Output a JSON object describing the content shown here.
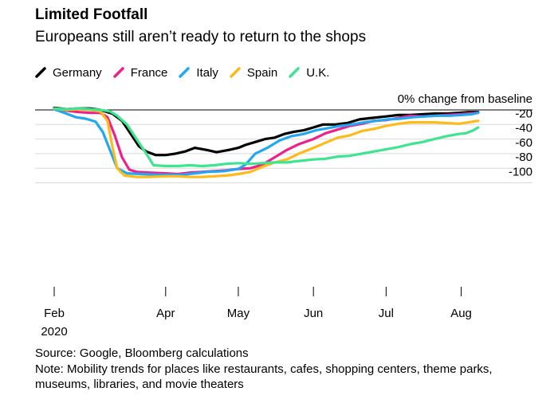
{
  "header": {
    "title": "Limited Footfall",
    "subtitle": "Europeans still aren’t ready to return to the shops"
  },
  "legend": [
    {
      "label": "Germany",
      "color": "#000000"
    },
    {
      "label": "France",
      "color": "#ef1f8c"
    },
    {
      "label": "Italy",
      "color": "#22a8f0"
    },
    {
      "label": "Spain",
      "color": "#fcbb1a"
    },
    {
      "label": "U.K.",
      "color": "#3ee58f"
    }
  ],
  "footer": {
    "source": "Source: Google, Bloomberg calculations",
    "note": "Note: Mobility trends for places like restaurants, cafes, shopping centers, theme parks, museums, libraries, and movie theaters"
  },
  "chart_data": {
    "type": "line",
    "title": "Limited Footfall",
    "subtitle": "Europeans still aren’t ready to return to the shops",
    "ylabel": "% change from baseline",
    "ylim": [
      -100,
      0
    ],
    "y_ticks": [
      {
        "value": 0,
        "label": "0% change from baseline"
      },
      {
        "value": -20,
        "label": "-20"
      },
      {
        "value": -40,
        "label": "-40"
      },
      {
        "value": -60,
        "label": "-60"
      },
      {
        "value": -80,
        "label": "-80"
      },
      {
        "value": -100,
        "label": "-100"
      }
    ],
    "xlim": [
      "2020-02-15",
      "2020-08-12"
    ],
    "x_ticks": [
      {
        "date": "2020-02-15",
        "label": "Feb",
        "sublabel": "2020"
      },
      {
        "date": "2020-04-01",
        "label": "Apr"
      },
      {
        "date": "2020-05-01",
        "label": "May"
      },
      {
        "date": "2020-06-01",
        "label": "Jun"
      },
      {
        "date": "2020-07-01",
        "label": "Jul"
      },
      {
        "date": "2020-08-01",
        "label": "Aug"
      }
    ],
    "legend_position": "top-left",
    "grid": true,
    "series": [
      {
        "name": "Germany",
        "color": "#000000",
        "points": [
          [
            "2020-02-15",
            3
          ],
          [
            "2020-02-20",
            1
          ],
          [
            "2020-02-25",
            2
          ],
          [
            "2020-03-01",
            2
          ],
          [
            "2020-03-05",
            0
          ],
          [
            "2020-03-10",
            -5
          ],
          [
            "2020-03-14",
            -15
          ],
          [
            "2020-03-18",
            -35
          ],
          [
            "2020-03-21",
            -50
          ],
          [
            "2020-03-24",
            -57
          ],
          [
            "2020-03-28",
            -62
          ],
          [
            "2020-04-01",
            -62
          ],
          [
            "2020-04-05",
            -60
          ],
          [
            "2020-04-09",
            -57
          ],
          [
            "2020-04-13",
            -52
          ],
          [
            "2020-04-18",
            -55
          ],
          [
            "2020-04-22",
            -58
          ],
          [
            "2020-04-27",
            -55
          ],
          [
            "2020-05-01",
            -52
          ],
          [
            "2020-05-04",
            -48
          ],
          [
            "2020-05-08",
            -44
          ],
          [
            "2020-05-12",
            -40
          ],
          [
            "2020-05-16",
            -38
          ],
          [
            "2020-05-20",
            -33
          ],
          [
            "2020-05-24",
            -30
          ],
          [
            "2020-05-28",
            -28
          ],
          [
            "2020-06-01",
            -24
          ],
          [
            "2020-06-05",
            -20
          ],
          [
            "2020-06-10",
            -20
          ],
          [
            "2020-06-15",
            -18
          ],
          [
            "2020-06-20",
            -13
          ],
          [
            "2020-06-25",
            -11
          ],
          [
            "2020-07-01",
            -9
          ],
          [
            "2020-07-06",
            -7
          ],
          [
            "2020-07-11",
            -7
          ],
          [
            "2020-07-16",
            -6
          ],
          [
            "2020-07-21",
            -5
          ],
          [
            "2020-07-26",
            -5
          ],
          [
            "2020-07-31",
            -4
          ],
          [
            "2020-08-04",
            -3
          ],
          [
            "2020-08-08",
            -3
          ]
        ]
      },
      {
        "name": "France",
        "color": "#ef1f8c",
        "points": [
          [
            "2020-02-15",
            2
          ],
          [
            "2020-02-20",
            -1
          ],
          [
            "2020-02-25",
            -3
          ],
          [
            "2020-03-01",
            -4
          ],
          [
            "2020-03-05",
            -4
          ],
          [
            "2020-03-08",
            -10
          ],
          [
            "2020-03-11",
            -35
          ],
          [
            "2020-03-14",
            -65
          ],
          [
            "2020-03-17",
            -82
          ],
          [
            "2020-03-20",
            -85
          ],
          [
            "2020-03-25",
            -86
          ],
          [
            "2020-04-01",
            -87
          ],
          [
            "2020-04-06",
            -88
          ],
          [
            "2020-04-11",
            -86
          ],
          [
            "2020-04-16",
            -85
          ],
          [
            "2020-04-21",
            -84
          ],
          [
            "2020-04-26",
            -83
          ],
          [
            "2020-05-01",
            -81
          ],
          [
            "2020-05-06",
            -80
          ],
          [
            "2020-05-11",
            -75
          ],
          [
            "2020-05-16",
            -65
          ],
          [
            "2020-05-21",
            -55
          ],
          [
            "2020-05-26",
            -47
          ],
          [
            "2020-06-01",
            -40
          ],
          [
            "2020-06-06",
            -32
          ],
          [
            "2020-06-11",
            -27
          ],
          [
            "2020-06-16",
            -22
          ],
          [
            "2020-06-21",
            -19
          ],
          [
            "2020-06-26",
            -15
          ],
          [
            "2020-07-01",
            -14
          ],
          [
            "2020-07-06",
            -11
          ],
          [
            "2020-07-11",
            -8
          ],
          [
            "2020-07-16",
            -9
          ],
          [
            "2020-07-21",
            -8
          ],
          [
            "2020-07-26",
            -7
          ],
          [
            "2020-07-31",
            -6
          ],
          [
            "2020-08-04",
            -5
          ],
          [
            "2020-08-08",
            -4
          ]
        ]
      },
      {
        "name": "Italy",
        "color": "#22a8f0",
        "points": [
          [
            "2020-02-15",
            1
          ],
          [
            "2020-02-20",
            -5
          ],
          [
            "2020-02-24",
            -10
          ],
          [
            "2020-02-28",
            -12
          ],
          [
            "2020-03-03",
            -16
          ],
          [
            "2020-03-06",
            -30
          ],
          [
            "2020-03-09",
            -55
          ],
          [
            "2020-03-12",
            -80
          ],
          [
            "2020-03-16",
            -87
          ],
          [
            "2020-03-22",
            -88
          ],
          [
            "2020-03-28",
            -89
          ],
          [
            "2020-04-03",
            -89
          ],
          [
            "2020-04-08",
            -89
          ],
          [
            "2020-04-13",
            -87
          ],
          [
            "2020-04-18",
            -85
          ],
          [
            "2020-04-25",
            -84
          ],
          [
            "2020-05-01",
            -81
          ],
          [
            "2020-05-04",
            -75
          ],
          [
            "2020-05-08",
            -60
          ],
          [
            "2020-05-13",
            -52
          ],
          [
            "2020-05-18",
            -42
          ],
          [
            "2020-05-23",
            -36
          ],
          [
            "2020-05-28",
            -33
          ],
          [
            "2020-06-02",
            -28
          ],
          [
            "2020-06-07",
            -25
          ],
          [
            "2020-06-12",
            -22
          ],
          [
            "2020-06-17",
            -20
          ],
          [
            "2020-06-22",
            -17
          ],
          [
            "2020-06-27",
            -15
          ],
          [
            "2020-07-02",
            -13
          ],
          [
            "2020-07-07",
            -12
          ],
          [
            "2020-07-12",
            -10
          ],
          [
            "2020-07-17",
            -9
          ],
          [
            "2020-07-22",
            -8
          ],
          [
            "2020-07-27",
            -8
          ],
          [
            "2020-08-01",
            -7
          ],
          [
            "2020-08-05",
            -6
          ],
          [
            "2020-08-08",
            -4
          ]
        ]
      },
      {
        "name": "Spain",
        "color": "#fcbb1a",
        "points": [
          [
            "2020-02-15",
            2
          ],
          [
            "2020-02-20",
            0
          ],
          [
            "2020-02-25",
            1
          ],
          [
            "2020-03-01",
            0
          ],
          [
            "2020-03-05",
            -2
          ],
          [
            "2020-03-08",
            -15
          ],
          [
            "2020-03-10",
            -50
          ],
          [
            "2020-03-12",
            -80
          ],
          [
            "2020-03-15",
            -90
          ],
          [
            "2020-03-20",
            -92
          ],
          [
            "2020-03-25",
            -92
          ],
          [
            "2020-04-01",
            -91
          ],
          [
            "2020-04-06",
            -91
          ],
          [
            "2020-04-11",
            -92
          ],
          [
            "2020-04-16",
            -92
          ],
          [
            "2020-04-21",
            -91
          ],
          [
            "2020-04-26",
            -90
          ],
          [
            "2020-05-01",
            -88
          ],
          [
            "2020-05-06",
            -85
          ],
          [
            "2020-05-11",
            -78
          ],
          [
            "2020-05-16",
            -72
          ],
          [
            "2020-05-21",
            -68
          ],
          [
            "2020-05-26",
            -60
          ],
          [
            "2020-06-01",
            -52
          ],
          [
            "2020-06-06",
            -45
          ],
          [
            "2020-06-11",
            -38
          ],
          [
            "2020-06-16",
            -35
          ],
          [
            "2020-06-21",
            -29
          ],
          [
            "2020-06-26",
            -26
          ],
          [
            "2020-07-01",
            -22
          ],
          [
            "2020-07-06",
            -19
          ],
          [
            "2020-07-11",
            -17
          ],
          [
            "2020-07-16",
            -17
          ],
          [
            "2020-07-21",
            -17
          ],
          [
            "2020-07-26",
            -18
          ],
          [
            "2020-07-31",
            -19
          ],
          [
            "2020-08-04",
            -17
          ],
          [
            "2020-08-08",
            -15
          ]
        ]
      },
      {
        "name": "U.K.",
        "color": "#3ee58f",
        "points": [
          [
            "2020-02-15",
            2
          ],
          [
            "2020-02-20",
            1
          ],
          [
            "2020-02-25",
            2
          ],
          [
            "2020-03-01",
            1
          ],
          [
            "2020-03-05",
            0
          ],
          [
            "2020-03-09",
            -2
          ],
          [
            "2020-03-12",
            -8
          ],
          [
            "2020-03-16",
            -20
          ],
          [
            "2020-03-20",
            -40
          ],
          [
            "2020-03-24",
            -60
          ],
          [
            "2020-03-27",
            -76
          ],
          [
            "2020-04-01",
            -77
          ],
          [
            "2020-04-06",
            -77
          ],
          [
            "2020-04-11",
            -76
          ],
          [
            "2020-04-16",
            -77
          ],
          [
            "2020-04-21",
            -76
          ],
          [
            "2020-04-26",
            -74
          ],
          [
            "2020-05-01",
            -73
          ],
          [
            "2020-05-06",
            -74
          ],
          [
            "2020-05-11",
            -73
          ],
          [
            "2020-05-16",
            -72
          ],
          [
            "2020-05-21",
            -72
          ],
          [
            "2020-05-26",
            -70
          ],
          [
            "2020-06-01",
            -68
          ],
          [
            "2020-06-06",
            -67
          ],
          [
            "2020-06-11",
            -64
          ],
          [
            "2020-06-16",
            -63
          ],
          [
            "2020-06-21",
            -60
          ],
          [
            "2020-06-26",
            -57
          ],
          [
            "2020-07-01",
            -54
          ],
          [
            "2020-07-06",
            -51
          ],
          [
            "2020-07-11",
            -47
          ],
          [
            "2020-07-16",
            -44
          ],
          [
            "2020-07-21",
            -40
          ],
          [
            "2020-07-26",
            -36
          ],
          [
            "2020-07-31",
            -33
          ],
          [
            "2020-08-03",
            -32
          ],
          [
            "2020-08-06",
            -28
          ],
          [
            "2020-08-08",
            -24
          ]
        ]
      }
    ]
  }
}
